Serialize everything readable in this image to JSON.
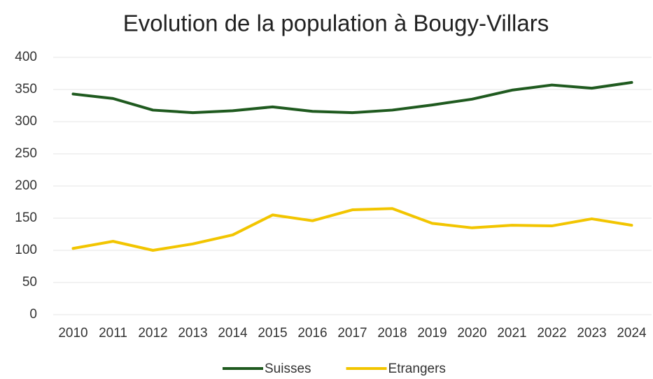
{
  "chart_data": {
    "type": "line",
    "title": "Evolution de la population à Bougy-Villars",
    "categories": [
      "2010",
      "2011",
      "2012",
      "2013",
      "2014",
      "2015",
      "2016",
      "2017",
      "2018",
      "2019",
      "2020",
      "2021",
      "2022",
      "2023",
      "2024"
    ],
    "series": [
      {
        "name": "Suisses",
        "color": "#1f5a1f",
        "values": [
          343,
          336,
          318,
          314,
          317,
          323,
          316,
          314,
          318,
          326,
          335,
          349,
          357,
          352,
          361
        ]
      },
      {
        "name": "Etrangers",
        "color": "#f2c500",
        "values": [
          103,
          114,
          100,
          110,
          124,
          155,
          146,
          163,
          165,
          142,
          135,
          139,
          138,
          149,
          139
        ]
      }
    ],
    "ylim": [
      0,
      400
    ],
    "yticks": [
      0,
      50,
      100,
      150,
      200,
      250,
      300,
      350,
      400
    ],
    "grid": true,
    "legend": "bottom"
  }
}
